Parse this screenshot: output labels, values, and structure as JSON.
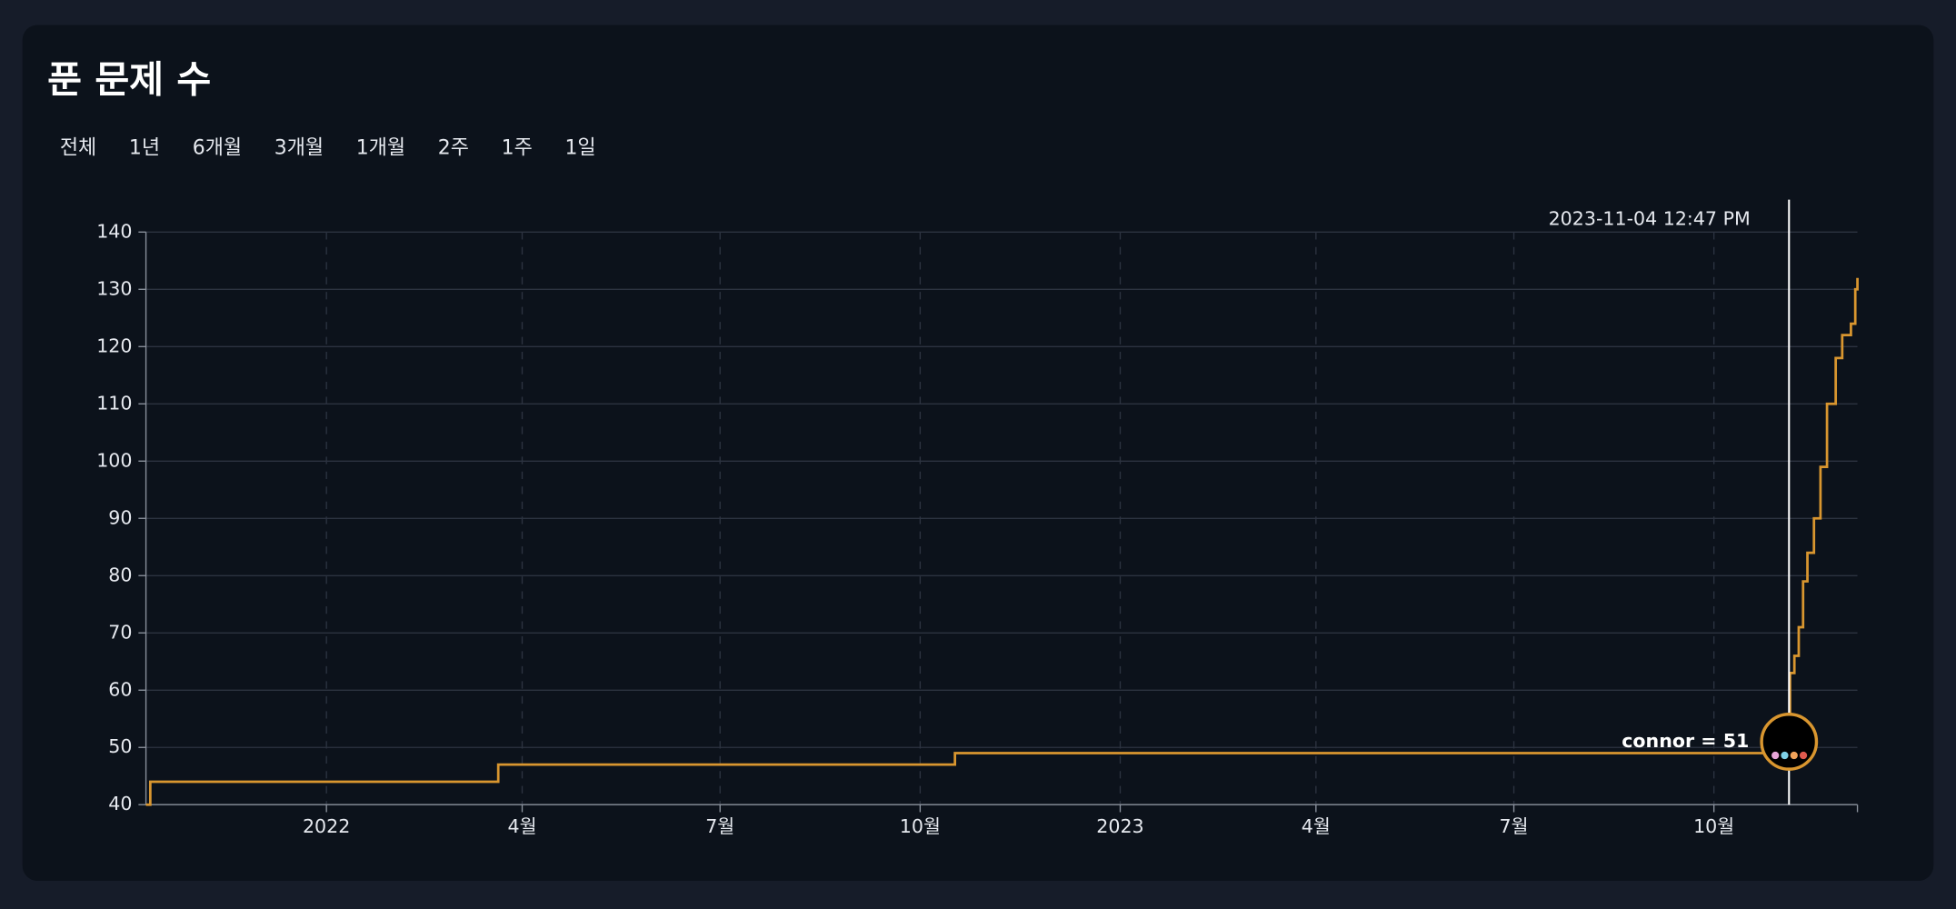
{
  "chart_data": {
    "type": "step-line",
    "title": "푼 문제 수",
    "range_buttons": [
      "전체",
      "1년",
      "6개월",
      "3개월",
      "1개월",
      "2주",
      "1주",
      "1일"
    ],
    "x": [
      "2021-10-10",
      "2021-10-12",
      "2022-03-21",
      "2022-10-17",
      "2023-11-04T12:47",
      "2023-11-05",
      "2023-11-07",
      "2023-11-09",
      "2023-11-11",
      "2023-11-13",
      "2023-11-16",
      "2023-11-19",
      "2023-11-22",
      "2023-11-26",
      "2023-11-29",
      "2023-12-03",
      "2023-12-05",
      "2023-12-06"
    ],
    "series": [
      {
        "name": "connor",
        "color": "#d9962f",
        "values": [
          40,
          44,
          47,
          49,
          51,
          63,
          66,
          71,
          79,
          84,
          90,
          99,
          110,
          118,
          122,
          124,
          130,
          132
        ]
      }
    ],
    "xlim": [
      "2021-10-10",
      "2023-12-06"
    ],
    "xticks": [
      {
        "value": "2022-01-01",
        "label": "2022"
      },
      {
        "value": "2022-04-01",
        "label": "4월"
      },
      {
        "value": "2022-07-01",
        "label": "7월"
      },
      {
        "value": "2022-10-01",
        "label": "10월"
      },
      {
        "value": "2023-01-01",
        "label": "2023"
      },
      {
        "value": "2023-04-01",
        "label": "4월"
      },
      {
        "value": "2023-07-01",
        "label": "7월"
      },
      {
        "value": "2023-10-01",
        "label": "10월"
      }
    ],
    "ylim": [
      40,
      140
    ],
    "yticks": [
      40,
      50,
      60,
      70,
      80,
      90,
      100,
      110,
      120,
      130,
      140
    ],
    "grid": true,
    "tooltip": {
      "x": "2023-11-04T12:47",
      "time": "2023-11-04 12:47 PM",
      "label": "connor = 51"
    }
  }
}
